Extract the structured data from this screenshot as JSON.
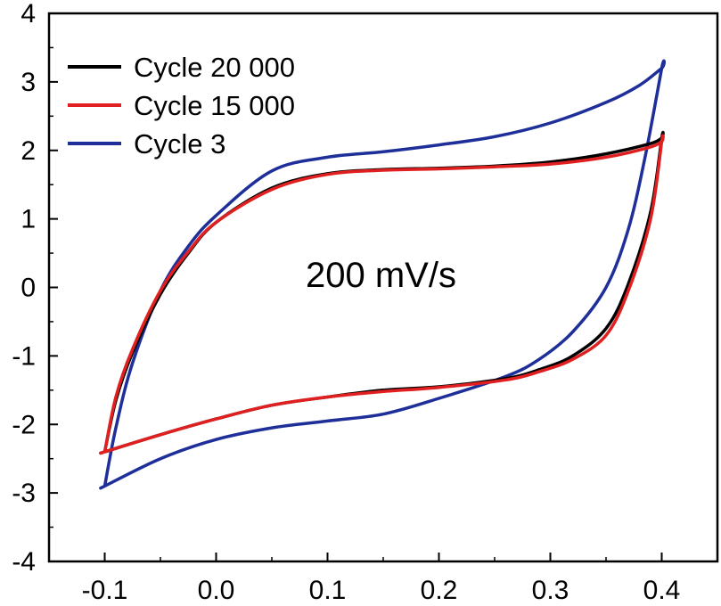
{
  "chart_data": {
    "type": "line",
    "title": "",
    "xlabel": "",
    "ylabel": "",
    "xlim": [
      -0.15,
      0.45
    ],
    "ylim": [
      -4,
      4
    ],
    "xticks": [
      -0.1,
      0.0,
      0.1,
      0.2,
      0.3,
      0.4
    ],
    "xtick_labels": [
      "-0.1",
      "0.0",
      "0.1",
      "0.2",
      "0.3",
      "0.4"
    ],
    "yticks": [
      -4,
      -3,
      -2,
      -1,
      0,
      1,
      2,
      3,
      4
    ],
    "ytick_labels": [
      "-4",
      "-3",
      "-2",
      "-1",
      "0",
      "1",
      "2",
      "3",
      "4"
    ],
    "grid": false,
    "legend": {
      "position": "top-left"
    },
    "annotation": "200 mV/s",
    "series": [
      {
        "name": "Cycle 20 000",
        "color": "#000000",
        "x": [
          -0.1,
          -0.09,
          -0.075,
          -0.05,
          -0.025,
          0.0,
          0.05,
          0.1,
          0.15,
          0.2,
          0.25,
          0.3,
          0.35,
          0.39,
          0.4,
          0.4,
          0.39,
          0.37,
          0.35,
          0.32,
          0.29,
          0.26,
          0.2,
          0.15,
          0.1,
          0.05,
          0.0,
          -0.05,
          -0.1,
          -0.1
        ],
        "y": [
          -2.4,
          -1.65,
          -0.95,
          -0.1,
          0.5,
          0.95,
          1.45,
          1.66,
          1.72,
          1.74,
          1.77,
          1.83,
          1.95,
          2.1,
          2.18,
          2.18,
          1.1,
          0.05,
          -0.6,
          -1.0,
          -1.2,
          -1.33,
          -1.45,
          -1.5,
          -1.6,
          -1.72,
          -1.92,
          -2.15,
          -2.4,
          -2.4
        ]
      },
      {
        "name": "Cycle 15 000",
        "color": "#e02020",
        "x": [
          -0.1,
          -0.09,
          -0.075,
          -0.05,
          -0.025,
          0.0,
          0.05,
          0.1,
          0.15,
          0.2,
          0.25,
          0.3,
          0.35,
          0.39,
          0.4,
          0.4,
          0.39,
          0.37,
          0.35,
          0.32,
          0.29,
          0.26,
          0.2,
          0.15,
          0.1,
          0.05,
          0.0,
          -0.05,
          -0.1,
          -0.1
        ],
        "y": [
          -2.4,
          -1.6,
          -0.9,
          -0.05,
          0.52,
          0.95,
          1.43,
          1.65,
          1.71,
          1.73,
          1.76,
          1.8,
          1.9,
          2.05,
          2.13,
          2.13,
          1.0,
          -0.05,
          -0.7,
          -1.05,
          -1.23,
          -1.35,
          -1.46,
          -1.52,
          -1.6,
          -1.72,
          -1.92,
          -2.15,
          -2.4,
          -2.4
        ]
      },
      {
        "name": "Cycle 3",
        "color": "#1f2f9a",
        "x": [
          -0.1,
          -0.09,
          -0.075,
          -0.05,
          -0.025,
          0.0,
          0.05,
          0.1,
          0.15,
          0.2,
          0.25,
          0.3,
          0.35,
          0.38,
          0.4,
          0.4,
          0.385,
          0.37,
          0.35,
          0.32,
          0.29,
          0.26,
          0.2,
          0.15,
          0.1,
          0.05,
          0.0,
          -0.05,
          -0.1,
          -0.1
        ],
        "y": [
          -2.9,
          -2.05,
          -1.1,
          -0.05,
          0.6,
          1.05,
          1.7,
          1.9,
          1.98,
          2.08,
          2.2,
          2.4,
          2.7,
          2.95,
          3.2,
          3.2,
          1.9,
          0.85,
          0.0,
          -0.65,
          -1.05,
          -1.3,
          -1.62,
          -1.85,
          -1.95,
          -2.05,
          -2.22,
          -2.5,
          -2.9,
          -2.9
        ]
      }
    ]
  }
}
